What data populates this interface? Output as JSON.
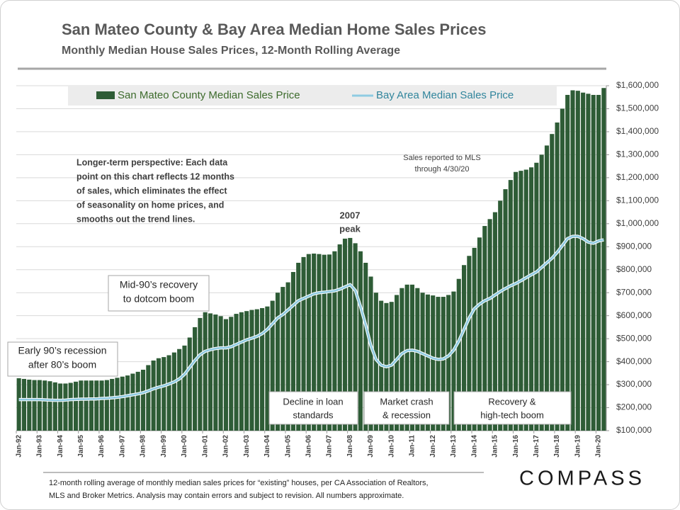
{
  "chart_data": {
    "type": "bar",
    "title": "San Mateo County & Bay Area Median Home Sales Prices",
    "subtitle": "Monthly Median House Sales Prices, 12-Month Rolling Average",
    "categories": [
      "Jan-92",
      null,
      null,
      null,
      "Jan-93",
      null,
      null,
      null,
      "Jan-94",
      null,
      null,
      null,
      "Jan-95",
      null,
      null,
      null,
      "Jan-96",
      null,
      null,
      null,
      "Jan-97",
      null,
      null,
      null,
      "Jan-98",
      null,
      null,
      null,
      "Jan-99",
      null,
      null,
      null,
      "Jan-00",
      null,
      null,
      null,
      "Jan-01",
      null,
      null,
      null,
      "Jan-02",
      null,
      null,
      null,
      "Jan-03",
      null,
      null,
      null,
      "Jan-04",
      null,
      null,
      null,
      "Jan-05",
      null,
      null,
      null,
      "Jan-06",
      null,
      null,
      null,
      "Jan-07",
      null,
      null,
      null,
      "Jan-08",
      null,
      null,
      null,
      "Jan-09",
      null,
      null,
      null,
      "Jan-10",
      null,
      null,
      null,
      "Jan-11",
      null,
      null,
      null,
      "Jan-12",
      null,
      null,
      null,
      "Jan-13",
      null,
      null,
      null,
      "Jan-14",
      null,
      null,
      null,
      "Jan-15",
      null,
      null,
      null,
      "Jan-16",
      null,
      null,
      null,
      "Jan-17",
      null,
      null,
      null,
      "Jan-18",
      null,
      null,
      null,
      "Jan-19",
      null,
      null,
      null,
      "Jan-20",
      null
    ],
    "series": [
      {
        "name": "San Mateo County Median Sales Price",
        "type": "bar",
        "color": "#2e5c36",
        "values": [
          328000,
          325000,
          322000,
          320000,
          320000,
          318000,
          315000,
          310000,
          305000,
          305000,
          308000,
          313000,
          318000,
          318000,
          318000,
          318000,
          318000,
          320000,
          325000,
          330000,
          335000,
          340000,
          348000,
          356000,
          365000,
          385000,
          405000,
          415000,
          420000,
          428000,
          440000,
          455000,
          470000,
          505000,
          550000,
          590000,
          615000,
          610000,
          605000,
          598000,
          585000,
          595000,
          608000,
          615000,
          620000,
          625000,
          628000,
          633000,
          640000,
          665000,
          700000,
          725000,
          745000,
          790000,
          830000,
          855000,
          868000,
          870000,
          868000,
          865000,
          866000,
          880000,
          910000,
          935000,
          938000,
          915000,
          880000,
          830000,
          770000,
          700000,
          665000,
          655000,
          660000,
          690000,
          720000,
          735000,
          735000,
          720000,
          700000,
          692000,
          688000,
          682000,
          682000,
          690000,
          705000,
          760000,
          820000,
          860000,
          895000,
          940000,
          990000,
          1020000,
          1050000,
          1100000,
          1150000,
          1190000,
          1225000,
          1230000,
          1235000,
          1245000,
          1265000,
          1300000,
          1340000,
          1390000,
          1440000,
          1500000,
          1560000,
          1580000,
          1578000,
          1570000,
          1565000,
          1560000,
          1560000,
          1590000
        ]
      },
      {
        "name": "Bay Area Median Sales Price",
        "type": "line",
        "color": "#8fcbe2",
        "values": [
          235000,
          235000,
          235000,
          235000,
          235000,
          234000,
          233000,
          232000,
          232000,
          233000,
          235000,
          236000,
          237000,
          237000,
          238000,
          238000,
          240000,
          241000,
          243000,
          245000,
          248000,
          252000,
          256000,
          260000,
          265000,
          273000,
          282000,
          289000,
          295000,
          303000,
          312000,
          325000,
          345000,
          375000,
          405000,
          430000,
          445000,
          452000,
          457000,
          460000,
          460000,
          465000,
          475000,
          485000,
          495000,
          502000,
          510000,
          522000,
          540000,
          565000,
          590000,
          605000,
          625000,
          645000,
          665000,
          675000,
          685000,
          695000,
          700000,
          702000,
          705000,
          708000,
          715000,
          725000,
          735000,
          710000,
          640000,
          560000,
          470000,
          410000,
          385000,
          378000,
          385000,
          410000,
          435000,
          448000,
          450000,
          445000,
          435000,
          425000,
          415000,
          410000,
          412000,
          425000,
          450000,
          490000,
          540000,
          590000,
          630000,
          650000,
          665000,
          675000,
          690000,
          705000,
          718000,
          730000,
          740000,
          752000,
          765000,
          778000,
          790000,
          810000,
          830000,
          850000,
          875000,
          905000,
          935000,
          945000,
          945000,
          935000,
          920000,
          915000,
          925000,
          930000
        ]
      }
    ],
    "ylim": [
      100000,
      1600000
    ],
    "yticks": [
      {
        "value": 100000,
        "label": "$100,000"
      },
      {
        "value": 200000,
        "label": "$200,000"
      },
      {
        "value": 300000,
        "label": "$300,000"
      },
      {
        "value": 400000,
        "label": "$400,000"
      },
      {
        "value": 500000,
        "label": "$500,000"
      },
      {
        "value": 600000,
        "label": "$600,000"
      },
      {
        "value": 700000,
        "label": "$700,000"
      },
      {
        "value": 800000,
        "label": "$800,000"
      },
      {
        "value": 900000,
        "label": "$900,000"
      },
      {
        "value": 1000000,
        "label": "$1,000,000"
      },
      {
        "value": 1100000,
        "label": "$1,100,000"
      },
      {
        "value": 1200000,
        "label": "$1,200,000"
      },
      {
        "value": 1300000,
        "label": "$1,300,000"
      },
      {
        "value": 1400000,
        "label": "$1,400,000"
      },
      {
        "value": 1500000,
        "label": "$1,500,000"
      },
      {
        "value": 1600000,
        "label": "$1,600,000"
      }
    ],
    "y_axis_side": "right",
    "grid": true,
    "legend_position": "top",
    "annotations": [
      [
        "Early 90’s recession",
        "after 80’s boom"
      ],
      [
        "Mid-90’s recovery",
        "to dotcom boom"
      ],
      [
        "Longer-term perspective:  Each data",
        "point on this chart reflects 12 months",
        "of sales, which eliminates the effect",
        "of seasonality on home prices, and",
        "smooths out the trend lines."
      ],
      [
        "2007",
        "peak"
      ],
      [
        "Sales reported to MLS",
        "through 4/30/20"
      ],
      [
        "Decline in loan",
        "standards"
      ],
      [
        "Market crash",
        "& recession"
      ],
      [
        "Recovery &",
        "high-tech boom"
      ]
    ],
    "footnote": [
      "12-month rolling average of monthly median sales prices for “existing” houses, per CA Association of Realtors,",
      "MLS and Broker Metrics.  Analysis may contain errors and subject to revision. All numbers approximate."
    ],
    "logo": "COMPASS"
  }
}
